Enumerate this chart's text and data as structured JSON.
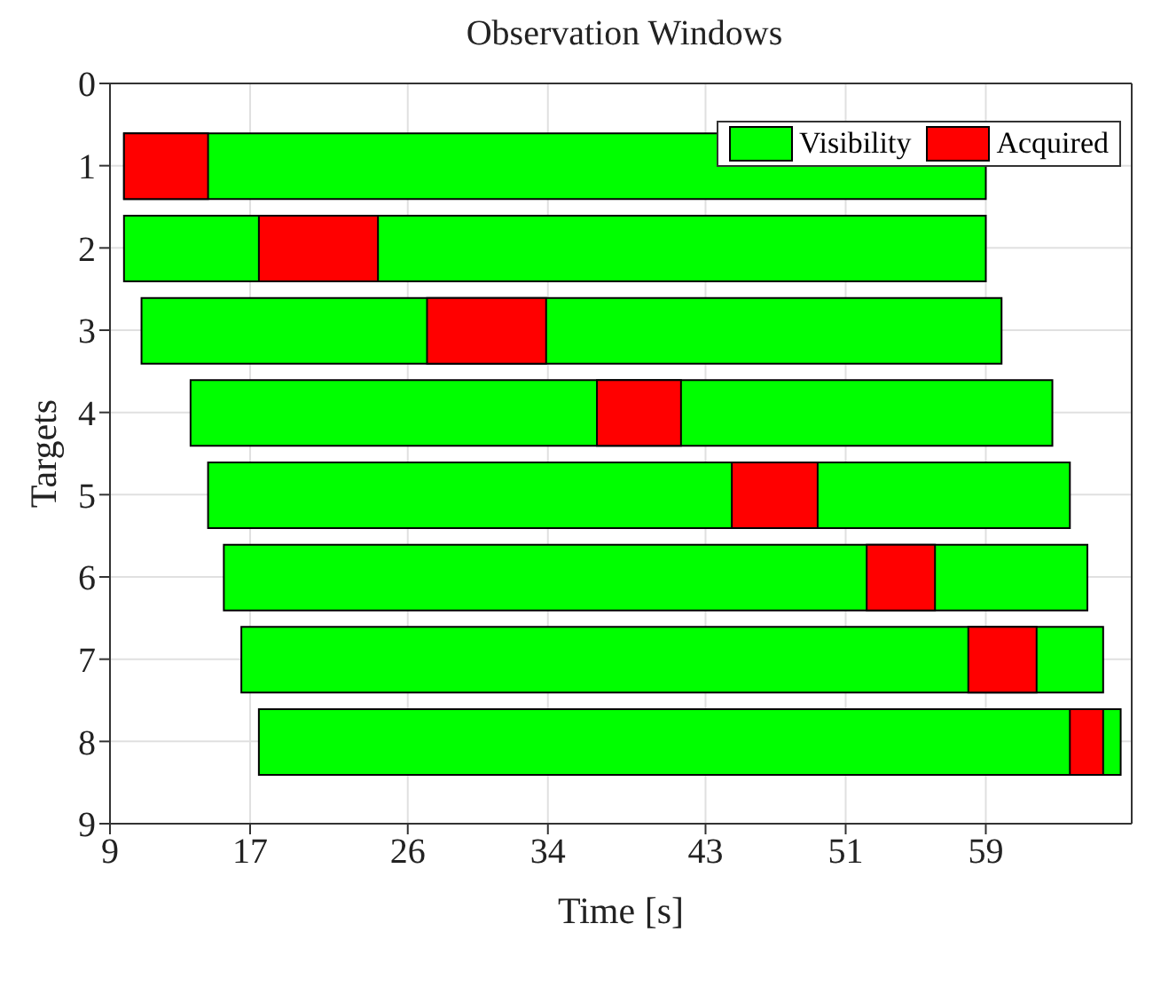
{
  "chart_data": {
    "type": "bar",
    "orientation": "horizontal",
    "title": "Observation Windows",
    "xlabel": "Time [s]",
    "ylabel": "Targets",
    "x": [
      1,
      2,
      3,
      4,
      5,
      6,
      7,
      8
    ],
    "series": [
      {
        "name": "Visibility",
        "color": "#00ff00",
        "base": [
          9.8,
          9.8,
          10.8,
          13.6,
          14.6,
          15.5,
          16.5,
          17.5
        ],
        "values": [
          49.2,
          49.2,
          49.1,
          49.2,
          49.2,
          49.3,
          49.2,
          49.2
        ]
      },
      {
        "name": "Acquired",
        "color": "#ff0000",
        "base": [
          9.8,
          17.5,
          27.1,
          36.8,
          44.5,
          52.2,
          58.0,
          63.8
        ],
        "values": [
          4.8,
          6.8,
          6.8,
          4.8,
          4.9,
          3.9,
          3.9,
          1.9
        ]
      }
    ],
    "xlim": [
      9,
      67.33
    ],
    "xticks": [
      9,
      17,
      26,
      34,
      43,
      51,
      59
    ],
    "ylim": [
      9,
      0
    ],
    "yticks": [
      0,
      1,
      2,
      3,
      4,
      5,
      6,
      7,
      8,
      9
    ],
    "grid": true,
    "legend": "top right"
  }
}
